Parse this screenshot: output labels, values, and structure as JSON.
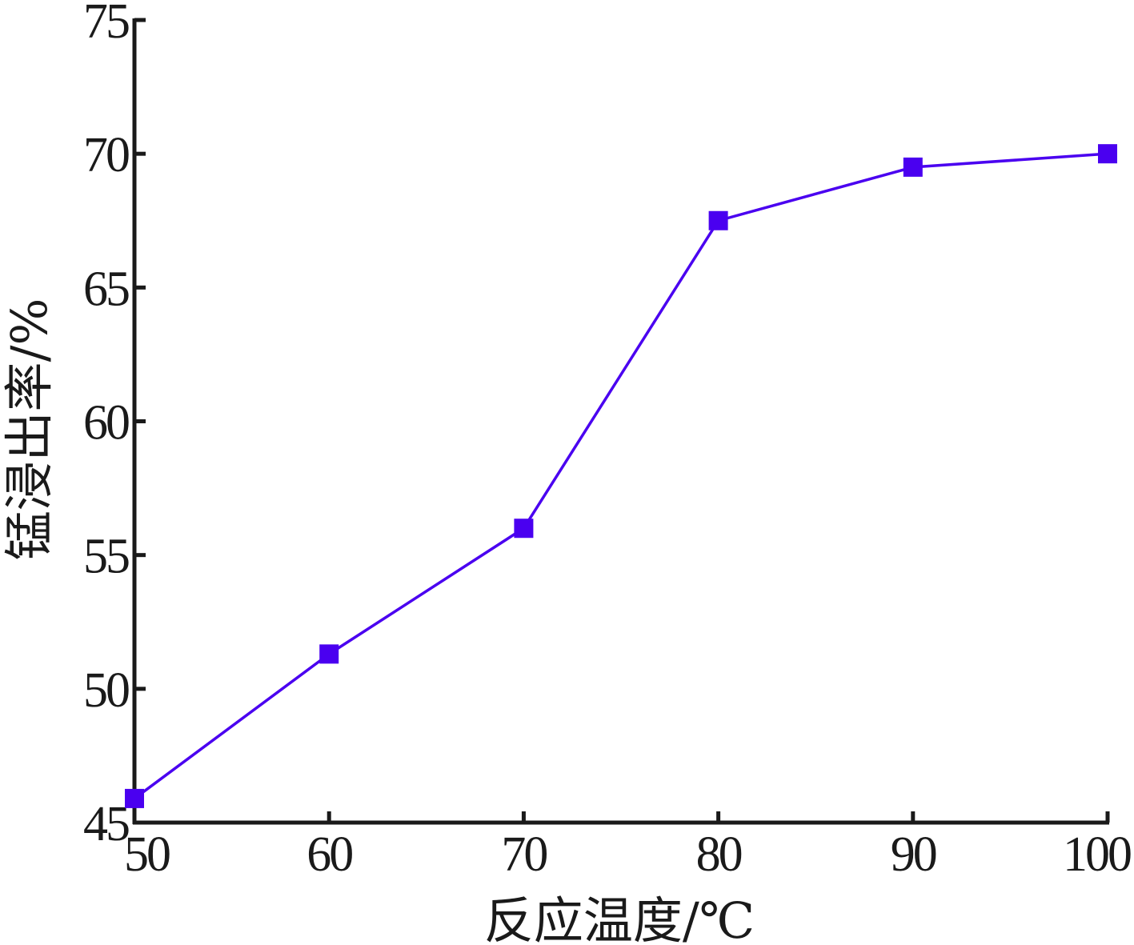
{
  "chart_data": {
    "type": "line",
    "title": "",
    "xlabel": "反应温度/℃",
    "ylabel": "锰浸出率/%",
    "x": [
      50,
      60,
      70,
      80,
      90,
      100
    ],
    "xticks": [
      "50",
      "60",
      "70",
      "80",
      "90",
      "100"
    ],
    "yticks": [
      "45",
      "50",
      "55",
      "60",
      "65",
      "70",
      "75"
    ],
    "xlim": [
      50,
      100
    ],
    "ylim": [
      45,
      75
    ],
    "grid": false,
    "series": [
      {
        "values": [
          45.9,
          51.3,
          56.0,
          67.5,
          69.5,
          70.0
        ],
        "color": "#4a00f0",
        "marker": "square"
      }
    ]
  }
}
